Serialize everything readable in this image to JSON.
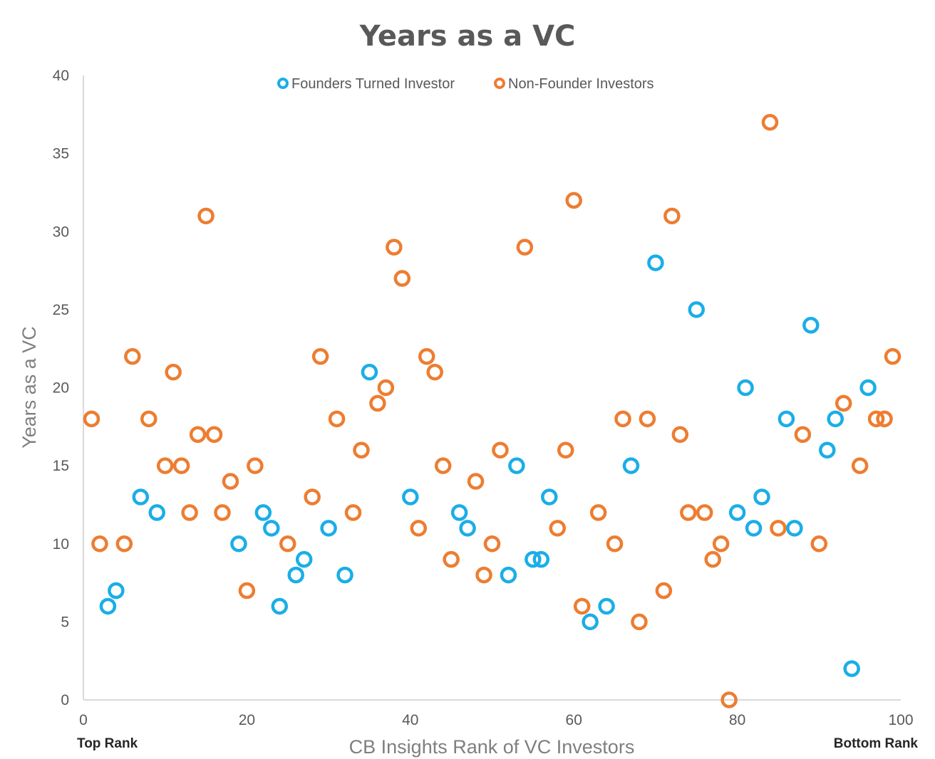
{
  "chart_data": {
    "type": "scatter",
    "title": "Years as a VC",
    "xlabel": "CB Insights Rank of VC Investors",
    "ylabel": "Years as a VC",
    "xlim": [
      0,
      100
    ],
    "ylim": [
      0,
      40
    ],
    "x_ticks": [
      0,
      20,
      40,
      60,
      80,
      100
    ],
    "y_ticks": [
      0,
      5,
      10,
      15,
      20,
      25,
      30,
      35,
      40
    ],
    "x_start_annotation": "Top Rank",
    "x_end_annotation": "Bottom Rank",
    "grid": false,
    "legend_position": "top-center",
    "series": [
      {
        "name": "Founders Turned Investor",
        "color": "#1aaee7",
        "points": [
          [
            3,
            6
          ],
          [
            4,
            7
          ],
          [
            7,
            13
          ],
          [
            9,
            12
          ],
          [
            19,
            10
          ],
          [
            22,
            12
          ],
          [
            23,
            11
          ],
          [
            24,
            6
          ],
          [
            26,
            8
          ],
          [
            27,
            9
          ],
          [
            30,
            11
          ],
          [
            32,
            8
          ],
          [
            35,
            21
          ],
          [
            40,
            13
          ],
          [
            46,
            12
          ],
          [
            47,
            11
          ],
          [
            52,
            8
          ],
          [
            53,
            15
          ],
          [
            55,
            9
          ],
          [
            56,
            9
          ],
          [
            57,
            13
          ],
          [
            62,
            5
          ],
          [
            64,
            6
          ],
          [
            67,
            15
          ],
          [
            70,
            28
          ],
          [
            75,
            25
          ],
          [
            80,
            12
          ],
          [
            81,
            20
          ],
          [
            82,
            11
          ],
          [
            83,
            13
          ],
          [
            86,
            18
          ],
          [
            87,
            11
          ],
          [
            89,
            24
          ],
          [
            91,
            16
          ],
          [
            92,
            18
          ],
          [
            94,
            2
          ],
          [
            96,
            20
          ]
        ]
      },
      {
        "name": "Non-Founder Investors",
        "color": "#ed7d31",
        "points": [
          [
            1,
            18
          ],
          [
            2,
            10
          ],
          [
            5,
            10
          ],
          [
            6,
            22
          ],
          [
            8,
            18
          ],
          [
            10,
            15
          ],
          [
            11,
            21
          ],
          [
            12,
            15
          ],
          [
            13,
            12
          ],
          [
            14,
            17
          ],
          [
            15,
            31
          ],
          [
            16,
            17
          ],
          [
            17,
            12
          ],
          [
            18,
            14
          ],
          [
            20,
            7
          ],
          [
            21,
            15
          ],
          [
            25,
            10
          ],
          [
            28,
            13
          ],
          [
            29,
            22
          ],
          [
            31,
            18
          ],
          [
            33,
            12
          ],
          [
            34,
            16
          ],
          [
            36,
            19
          ],
          [
            37,
            20
          ],
          [
            38,
            29
          ],
          [
            39,
            27
          ],
          [
            41,
            11
          ],
          [
            42,
            22
          ],
          [
            43,
            21
          ],
          [
            44,
            15
          ],
          [
            45,
            9
          ],
          [
            48,
            14
          ],
          [
            49,
            8
          ],
          [
            50,
            10
          ],
          [
            51,
            16
          ],
          [
            54,
            29
          ],
          [
            58,
            11
          ],
          [
            59,
            16
          ],
          [
            60,
            32
          ],
          [
            61,
            6
          ],
          [
            63,
            12
          ],
          [
            65,
            10
          ],
          [
            66,
            18
          ],
          [
            68,
            5
          ],
          [
            69,
            18
          ],
          [
            71,
            7
          ],
          [
            72,
            31
          ],
          [
            73,
            17
          ],
          [
            74,
            12
          ],
          [
            76,
            12
          ],
          [
            77,
            9
          ],
          [
            78,
            10
          ],
          [
            79,
            0
          ],
          [
            84,
            37
          ],
          [
            85,
            11
          ],
          [
            88,
            17
          ],
          [
            90,
            10
          ],
          [
            93,
            19
          ],
          [
            95,
            15
          ],
          [
            97,
            18
          ],
          [
            98,
            18
          ],
          [
            99,
            22
          ]
        ]
      }
    ]
  }
}
